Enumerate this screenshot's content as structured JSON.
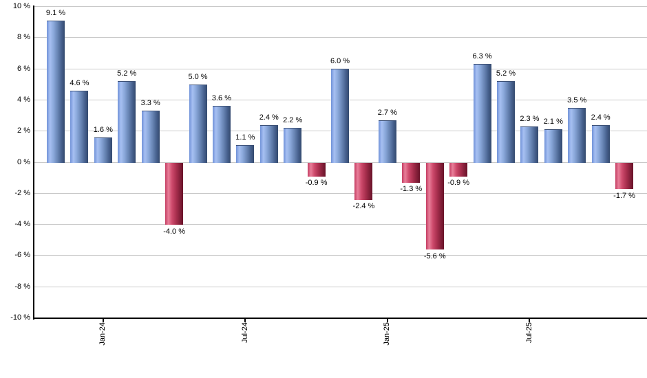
{
  "chart_data": {
    "type": "bar",
    "title": "",
    "unit": "%",
    "values": [
      9.1,
      4.6,
      1.6,
      5.2,
      3.3,
      -4.0,
      5.0,
      3.6,
      1.1,
      2.4,
      2.2,
      -0.9,
      6.0,
      -2.4,
      2.7,
      -1.3,
      -5.6,
      -0.9,
      6.3,
      5.2,
      2.3,
      2.1,
      3.5,
      2.4,
      -1.7
    ],
    "bar_labels": [
      "9.1 %",
      "4.6 %",
      "1.6 %",
      "5.2 %",
      "3.3 %",
      "-4.0 %",
      "5.0 %",
      "3.6 %",
      "1.1 %",
      "2.4 %",
      "2.2 %",
      "-0.9 %",
      "6.0 %",
      "-2.4 %",
      "2.7 %",
      "-1.3 %",
      "-5.6 %",
      "-0.9 %",
      "6.3 %",
      "5.2 %",
      "2.3 %",
      "2.1 %",
      "3.5 %",
      "2.4 %",
      "-1.7 %"
    ],
    "x_ticks": [
      {
        "index": 2,
        "label": "Jan-24"
      },
      {
        "index": 8,
        "label": "Jul-24"
      },
      {
        "index": 14,
        "label": "Jan-25"
      },
      {
        "index": 20,
        "label": "Jul-25"
      }
    ],
    "y_tick_labels": [
      "10 %",
      "8 %",
      "6 %",
      "4 %",
      "2 %",
      "0 %",
      "-2 %",
      "-4 %",
      "-6 %",
      "-8 %",
      "-10 %"
    ],
    "ylim": [
      -10,
      10
    ],
    "y_step": 2,
    "grid": true,
    "legend_position": "none",
    "colors": {
      "positive_gradient": [
        "#7092d8",
        "#a7c0f2",
        "#8aa8da",
        "#6683b2",
        "#47618e",
        "#33496e"
      ],
      "negative_gradient": [
        "#c43e63",
        "#e87e99",
        "#ce4a6c",
        "#a92f4e",
        "#85203a",
        "#691329"
      ],
      "gradient_stops_pct": [
        0,
        18,
        38,
        62,
        82,
        100
      ],
      "gridline": "#c9c9c9",
      "axis": "#000000",
      "label_text": "#000000",
      "background": "#ffffff"
    }
  }
}
